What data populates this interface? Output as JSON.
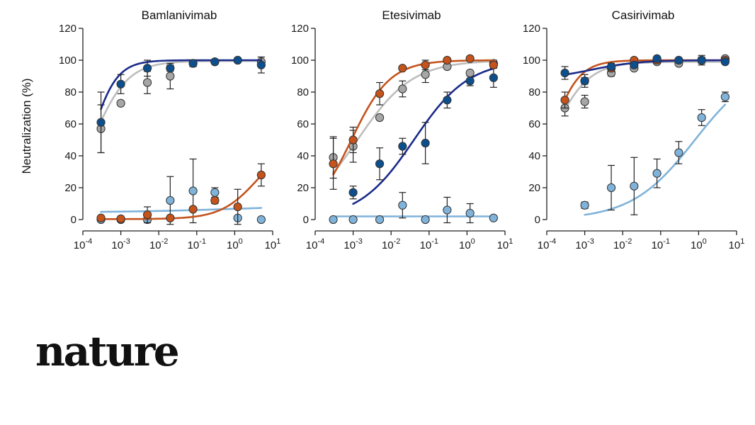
{
  "chart_data": {
    "type": "scatter",
    "ylabel": "Neutralization (%)",
    "ylim": [
      0,
      120
    ],
    "yticks": [
      0,
      20,
      40,
      60,
      80,
      100,
      120
    ],
    "xscale": "log",
    "xlim": [
      0.0001,
      10
    ],
    "xticks": [
      {
        "base": "10",
        "exp": "-4"
      },
      {
        "base": "10",
        "exp": "-3"
      },
      {
        "base": "10",
        "exp": "-2"
      },
      {
        "base": "10",
        "exp": "-1"
      },
      {
        "base": "10",
        "exp": "0"
      },
      {
        "base": "10",
        "exp": "1"
      }
    ],
    "colors": {
      "dark_blue": "#0d4f8c",
      "orange": "#c4531c",
      "gray": "#a6a6a6",
      "light_blue": "#7fb3da",
      "navy_line": "#1a2b8a"
    },
    "panels": [
      {
        "title": "Bamlanivimab",
        "series": [
          {
            "name": "light-blue",
            "color": "#7fb3da",
            "line": "#7fb3da",
            "fit": {
              "bottom": 4.5,
              "top": 9,
              "ec50": 1,
              "hill": 0.3
            },
            "x": [
              0.0003,
              0.001,
              0.005,
              0.02,
              0.08,
              0.3,
              1.2,
              5
            ],
            "y": [
              0,
              0,
              0,
              12,
              18,
              17,
              1,
              0
            ],
            "err": [
              0,
              0,
              0,
              15,
              20,
              3,
              0,
              0
            ]
          },
          {
            "name": "orange",
            "color": "#c4531c",
            "line": "#c4531c",
            "fit": {
              "bottom": 0.3,
              "top": 50,
              "ec50": 4,
              "hill": 0.9
            },
            "x": [
              0.0003,
              0.001,
              0.005,
              0.02,
              0.08,
              0.3,
              1.2,
              5
            ],
            "y": [
              1,
              0.5,
              3,
              1,
              6.5,
              12,
              8,
              28
            ],
            "err": [
              0,
              0,
              5,
              0,
              0,
              2,
              11,
              7
            ]
          },
          {
            "name": "gray",
            "color": "#a6a6a6",
            "line": "#bdbdbd",
            "fit": {
              "bottom": 0,
              "top": 99.5,
              "ec50": 0.00018,
              "hill": 0.95
            },
            "x": [
              0.0003,
              0.001,
              0.005,
              0.02,
              0.08,
              0.3,
              1.2,
              5
            ],
            "y": [
              57,
              73,
              86,
              90,
              98,
              99,
              100,
              99
            ],
            "err": [
              15,
              0,
              7,
              8,
              2,
              1,
              0,
              3
            ]
          },
          {
            "name": "dark-blue",
            "color": "#0d4f8c",
            "line": "#1a2b8a",
            "fit": {
              "bottom": 0,
              "top": 100,
              "ec50": 0.00016,
              "hill": 1.3
            },
            "x": [
              0.0003,
              0.001,
              0.005,
              0.02,
              0.08,
              0.3,
              1.2,
              5
            ],
            "y": [
              61,
              85,
              95,
              95,
              98,
              99,
              100,
              97
            ],
            "err": [
              19,
              6,
              5,
              2,
              2,
              1,
              0,
              5
            ]
          }
        ]
      },
      {
        "title": "Etesivimab",
        "series": [
          {
            "name": "light-blue",
            "color": "#7fb3da",
            "line": "#7fb3da",
            "fit": {
              "bottom": 2,
              "top": 2,
              "ec50": 1,
              "hill": 1
            },
            "x": [
              0.0003,
              0.001,
              0.005,
              0.02,
              0.08,
              0.3,
              1.2,
              5
            ],
            "y": [
              0,
              0,
              0,
              9,
              0,
              6,
              4,
              1
            ],
            "err": [
              0,
              0,
              0,
              8,
              0,
              8,
              6,
              0
            ]
          },
          {
            "name": "dark-blue",
            "color": "#0d4f8c",
            "line": "#1a2b8a",
            "fit": {
              "bottom": 0,
              "top": 100,
              "ec50": 0.04,
              "hill": 0.6
            },
            "x": [
              0.001,
              0.005,
              0.02,
              0.08,
              0.3,
              1.2,
              5
            ],
            "y": [
              17,
              35,
              46,
              48,
              75,
              87,
              89
            ],
            "err": [
              4,
              10,
              5,
              13,
              5,
              3,
              6
            ]
          },
          {
            "name": "gray",
            "color": "#a6a6a6",
            "line": "#bdbdbd",
            "fit": {
              "bottom": 0,
              "top": 100,
              "ec50": 0.0013,
              "hill": 0.6
            },
            "x": [
              0.0003,
              0.001,
              0.005,
              0.02,
              0.08,
              0.3,
              1.2,
              5
            ],
            "y": [
              39,
              46,
              64,
              82,
              91,
              96,
              92,
              98
            ],
            "err": [
              13,
              10,
              0,
              5,
              5,
              1,
              0,
              2
            ]
          },
          {
            "name": "orange",
            "color": "#c4531c",
            "line": "#c4531c",
            "fit": {
              "bottom": 0,
              "top": 100,
              "ec50": 0.0009,
              "hill": 0.85
            },
            "x": [
              0.0003,
              0.001,
              0.005,
              0.02,
              0.08,
              0.3,
              1.2,
              5
            ],
            "y": [
              35,
              50,
              79,
              95,
              97,
              100,
              101,
              97
            ],
            "err": [
              16,
              8,
              7,
              0,
              3,
              0,
              0,
              2
            ]
          }
        ]
      },
      {
        "title": "Casirivimab",
        "series": [
          {
            "name": "light-blue",
            "color": "#7fb3da",
            "line": "#7fb3da",
            "fit": {
              "bottom": 0,
              "top": 100,
              "ec50": 0.8,
              "hill": 0.52
            },
            "x": [
              0.001,
              0.005,
              0.02,
              0.08,
              0.3,
              1.2,
              5
            ],
            "y": [
              9,
              20,
              21,
              29,
              42,
              64,
              77
            ],
            "err": [
              2,
              14,
              18,
              9,
              7,
              5,
              3
            ]
          },
          {
            "name": "gray",
            "color": "#a6a6a6",
            "line": "#bdbdbd",
            "fit": {
              "bottom": 0,
              "top": 99,
              "ec50": 0.00012,
              "hill": 0.9
            },
            "x": [
              0.0003,
              0.001,
              0.005,
              0.02,
              0.08,
              0.3,
              1.2,
              5
            ],
            "y": [
              70,
              74,
              92,
              95,
              99,
              98,
              100,
              101
            ],
            "err": [
              5,
              4,
              2,
              0,
              0,
              0,
              3,
              0
            ]
          },
          {
            "name": "orange",
            "color": "#c4531c",
            "line": "#c4531c",
            "fit": {
              "bottom": 0,
              "top": 100,
              "ec50": 0.00012,
              "hill": 1.2
            },
            "x": [
              0.0003,
              0.001,
              0.005,
              0.02,
              0.08,
              0.3,
              1.2,
              5
            ],
            "y": [
              75,
              87,
              95,
              100,
              100,
              100,
              100,
              100
            ],
            "err": [
              5,
              4,
              2,
              1,
              0,
              0,
              2,
              0
            ]
          },
          {
            "name": "dark-blue",
            "color": "#0d4f8c",
            "line": "#1a2b8a",
            "fit": {
              "bottom": 88,
              "top": 100,
              "ec50": 0.0015,
              "hill": 0.7
            },
            "x": [
              0.0003,
              0.001,
              0.005,
              0.02,
              0.08,
              0.3,
              1.2,
              5
            ],
            "y": [
              92,
              87,
              96,
              97,
              101,
              100,
              100,
              99
            ],
            "err": [
              4,
              2,
              2,
              1,
              0,
              0,
              0,
              0
            ]
          }
        ]
      }
    ]
  },
  "footer": {
    "logo_text": "nature"
  }
}
